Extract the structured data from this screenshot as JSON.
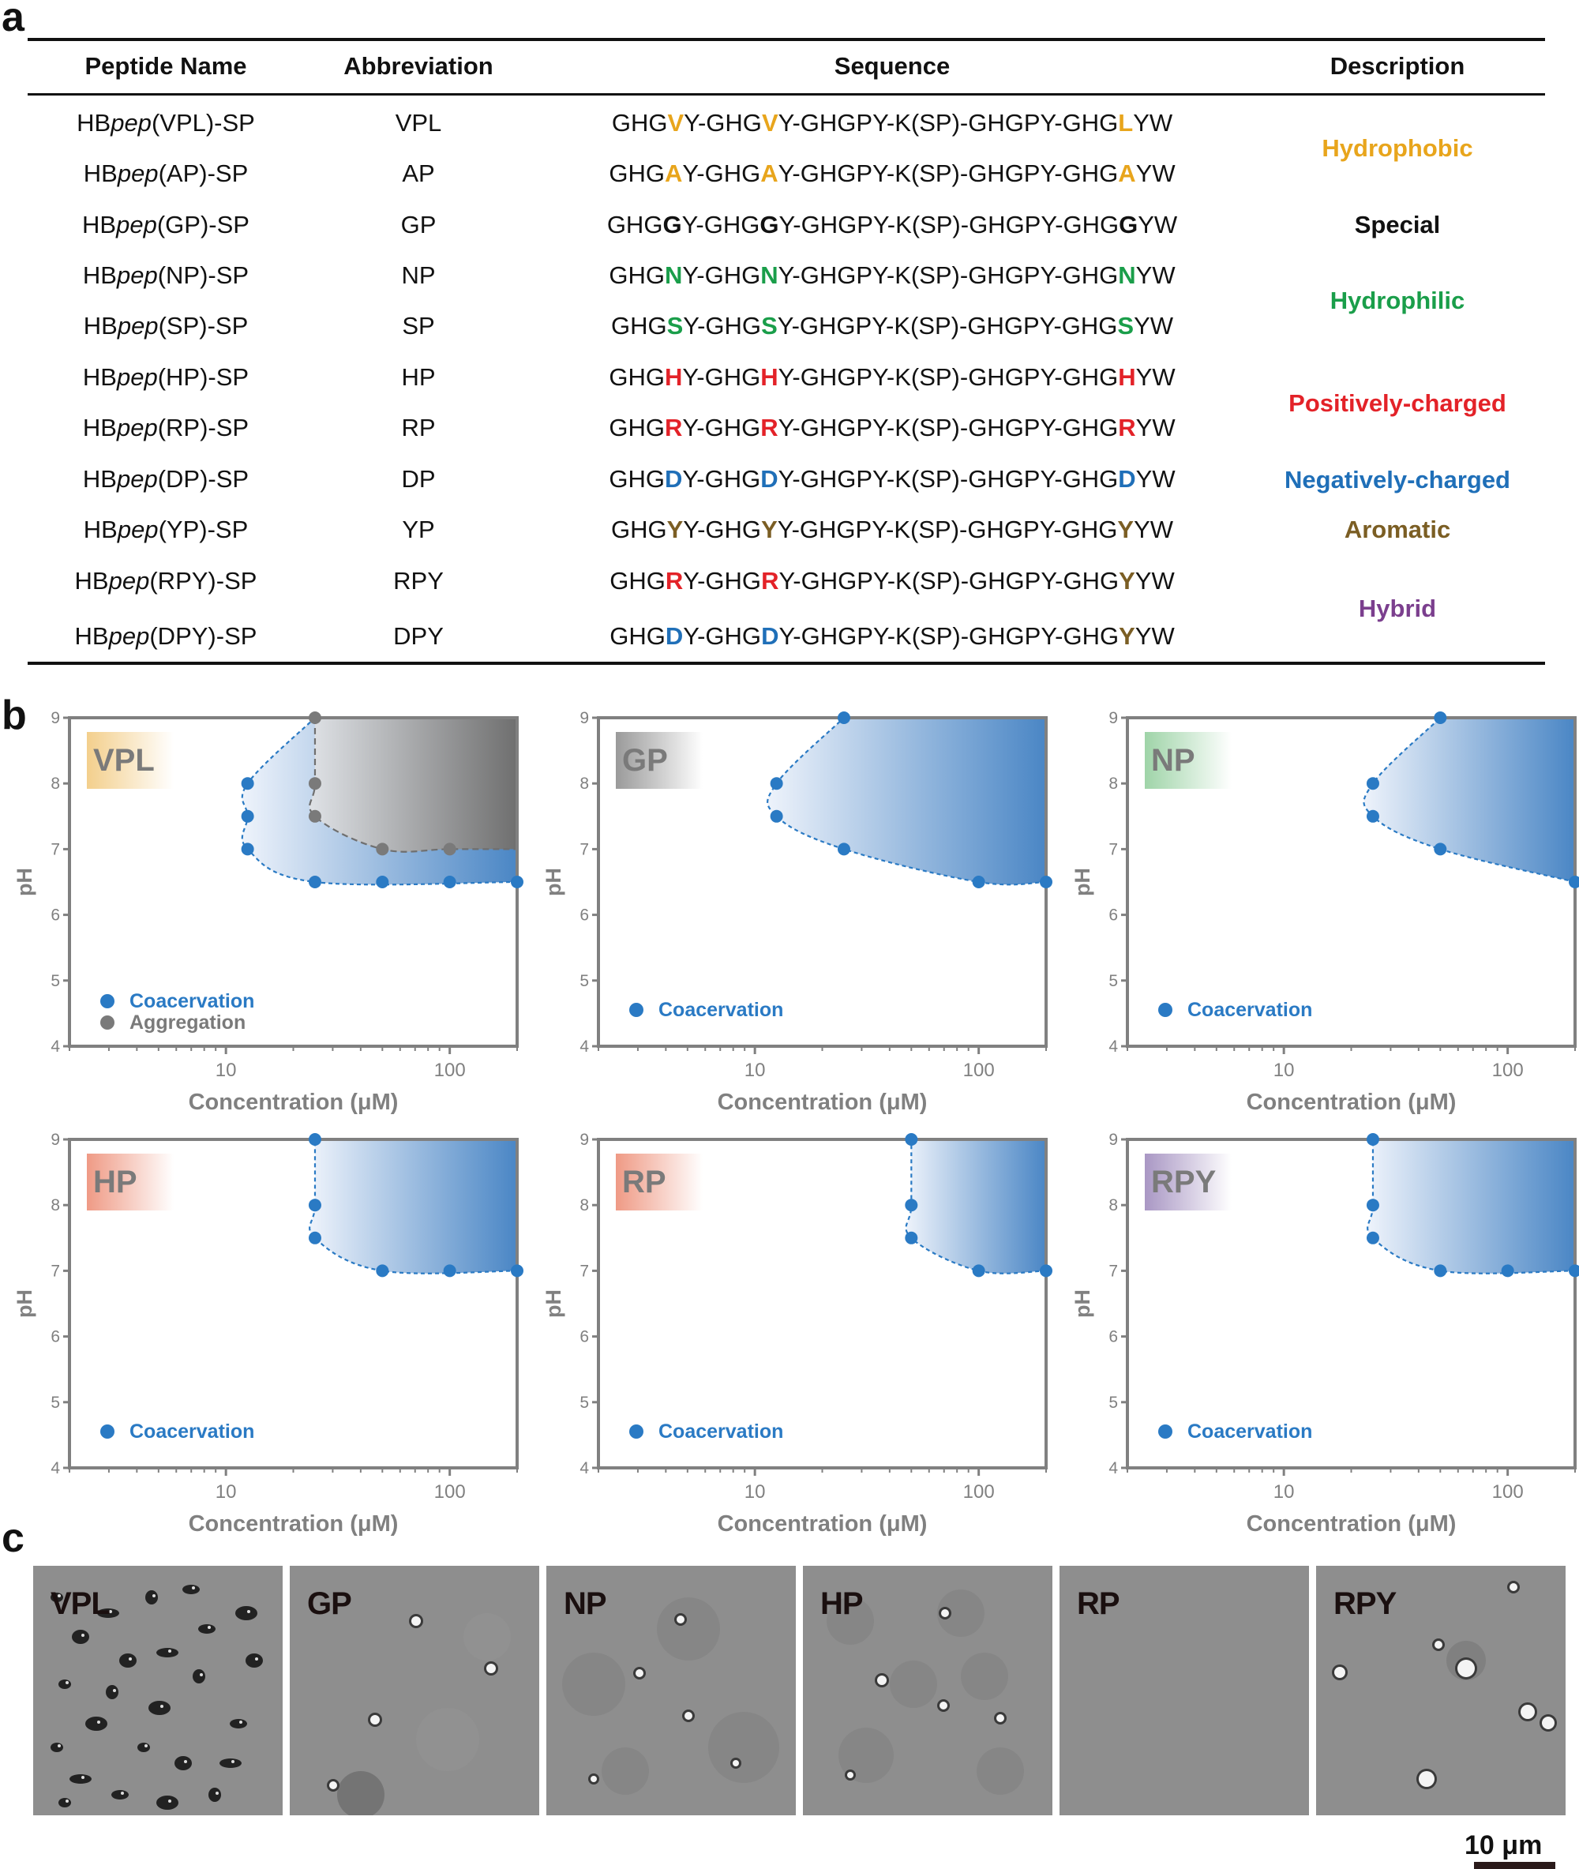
{
  "panel_labels": {
    "a": "a",
    "b": "b",
    "c": "c"
  },
  "table": {
    "headers": [
      "Peptide Name",
      "Abbreviation",
      "Sequence",
      "Description"
    ],
    "rows": [
      {
        "name_prefix": "HB",
        "name_italic": "pep",
        "name_suffix": "(VPL)-SP",
        "abbr": "VPL",
        "seq": [
          [
            "GHG",
            ""
          ],
          [
            "V",
            "#e8a51c"
          ],
          [
            "Y-GHG",
            ""
          ],
          [
            "V",
            "#e8a51c"
          ],
          [
            "Y-GHGPY-K(SP)-GHGPY-GHG",
            ""
          ],
          [
            "L",
            "#e8a51c"
          ],
          [
            "YW",
            ""
          ]
        ]
      },
      {
        "name_prefix": "HB",
        "name_italic": "pep",
        "name_suffix": "(AP)-SP",
        "abbr": "AP",
        "seq": [
          [
            "GHG",
            ""
          ],
          [
            "A",
            "#e8a51c"
          ],
          [
            "Y-GHG",
            ""
          ],
          [
            "A",
            "#e8a51c"
          ],
          [
            "Y-GHGPY-K(SP)-GHGPY-GHG",
            ""
          ],
          [
            "A",
            "#e8a51c"
          ],
          [
            "YW",
            ""
          ]
        ]
      },
      {
        "name_prefix": "HB",
        "name_italic": "pep",
        "name_suffix": "(GP)-SP",
        "abbr": "GP",
        "seq": [
          [
            "GHG",
            ""
          ],
          [
            "G",
            "#111111"
          ],
          [
            "Y-GHG",
            ""
          ],
          [
            "G",
            "#111111"
          ],
          [
            "Y-GHGPY-K(SP)-GHGPY-GHG",
            ""
          ],
          [
            "G",
            "#111111"
          ],
          [
            "YW",
            ""
          ]
        ]
      },
      {
        "name_prefix": "HB",
        "name_italic": "pep",
        "name_suffix": "(NP)-SP",
        "abbr": "NP",
        "seq": [
          [
            "GHG",
            ""
          ],
          [
            "N",
            "#1a9e4a"
          ],
          [
            "Y-GHG",
            ""
          ],
          [
            "N",
            "#1a9e4a"
          ],
          [
            "Y-GHGPY-K(SP)-GHGPY-GHG",
            ""
          ],
          [
            "N",
            "#1a9e4a"
          ],
          [
            "YW",
            ""
          ]
        ]
      },
      {
        "name_prefix": "HB",
        "name_italic": "pep",
        "name_suffix": "(SP)-SP",
        "abbr": "SP",
        "seq": [
          [
            "GHG",
            ""
          ],
          [
            "S",
            "#1a9e4a"
          ],
          [
            "Y-GHG",
            ""
          ],
          [
            "S",
            "#1a9e4a"
          ],
          [
            "Y-GHGPY-K(SP)-GHGPY-GHG",
            ""
          ],
          [
            "S",
            "#1a9e4a"
          ],
          [
            "YW",
            ""
          ]
        ]
      },
      {
        "name_prefix": "HB",
        "name_italic": "pep",
        "name_suffix": "(HP)-SP",
        "abbr": "HP",
        "seq": [
          [
            "GHG",
            ""
          ],
          [
            "H",
            "#e32228"
          ],
          [
            "Y-GHG",
            ""
          ],
          [
            "H",
            "#e32228"
          ],
          [
            "Y-GHGPY-K(SP)-GHGPY-GHG",
            ""
          ],
          [
            "H",
            "#e32228"
          ],
          [
            "YW",
            ""
          ]
        ]
      },
      {
        "name_prefix": "HB",
        "name_italic": "pep",
        "name_suffix": "(RP)-SP",
        "abbr": "RP",
        "seq": [
          [
            "GHG",
            ""
          ],
          [
            "R",
            "#e32228"
          ],
          [
            "Y-GHG",
            ""
          ],
          [
            "R",
            "#e32228"
          ],
          [
            "Y-GHGPY-K(SP)-GHGPY-GHG",
            ""
          ],
          [
            "R",
            "#e32228"
          ],
          [
            "YW",
            ""
          ]
        ]
      },
      {
        "name_prefix": "HB",
        "name_italic": "pep",
        "name_suffix": "(DP)-SP",
        "abbr": "DP",
        "seq": [
          [
            "GHG",
            ""
          ],
          [
            "D",
            "#1f6fb8"
          ],
          [
            "Y-GHG",
            ""
          ],
          [
            "D",
            "#1f6fb8"
          ],
          [
            "Y-GHGPY-K(SP)-GHGPY-GHG",
            ""
          ],
          [
            "D",
            "#1f6fb8"
          ],
          [
            "YW",
            ""
          ]
        ]
      },
      {
        "name_prefix": "HB",
        "name_italic": "pep",
        "name_suffix": "(YP)-SP",
        "abbr": "YP",
        "seq": [
          [
            "GHG",
            ""
          ],
          [
            "Y",
            "#7b5e24"
          ],
          [
            "Y-GHG",
            ""
          ],
          [
            "Y",
            "#7b5e24"
          ],
          [
            "Y-GHGPY-K(SP)-GHGPY-GHG",
            ""
          ],
          [
            "Y",
            "#7b5e24"
          ],
          [
            "YW",
            ""
          ]
        ]
      },
      {
        "name_prefix": "HB",
        "name_italic": "pep",
        "name_suffix": "(RPY)-SP",
        "abbr": "RPY",
        "seq": [
          [
            "GHG",
            ""
          ],
          [
            "R",
            "#e32228"
          ],
          [
            "Y-GHG",
            ""
          ],
          [
            "R",
            "#e32228"
          ],
          [
            "Y-GHGPY-K(SP)-GHGPY-GHG",
            ""
          ],
          [
            "Y",
            "#7b5e24"
          ],
          [
            "YW",
            ""
          ]
        ]
      },
      {
        "name_prefix": "HB",
        "name_italic": "pep",
        "name_suffix": "(DPY)-SP",
        "abbr": "DPY",
        "seq": [
          [
            "GHG",
            ""
          ],
          [
            "D",
            "#1f6fb8"
          ],
          [
            "Y-GHG",
            ""
          ],
          [
            "D",
            "#1f6fb8"
          ],
          [
            "Y-GHGPY-K(SP)-GHGPY-GHG",
            ""
          ],
          [
            "Y",
            "#7b5e24"
          ],
          [
            "YW",
            ""
          ]
        ]
      }
    ],
    "descriptions": [
      {
        "text": "Hydrophobic",
        "color": "#e8a51c"
      },
      {
        "text": "Special",
        "color": "#111111"
      },
      {
        "text": "Hydrophilic",
        "color": "#1a9e4a"
      },
      {
        "text": "Positively-charged",
        "color": "#e32228"
      },
      {
        "text": "Negatively-charged",
        "color": "#1f6fb8"
      },
      {
        "text": "Aromatic",
        "color": "#7b5e24"
      },
      {
        "text": "Hybrid",
        "color": "#7b3f8e"
      }
    ]
  },
  "chart_data": [
    {
      "type": "scatter",
      "title": "VPL",
      "title_color": "#e8a51c",
      "xlabel": "Concentration (μM)",
      "ylabel": "pH",
      "xscale": "log",
      "xlim": [
        2,
        200
      ],
      "ylim": [
        4,
        9
      ],
      "xticks": [
        10,
        100
      ],
      "yticks": [
        4,
        5,
        6,
        7,
        8,
        9
      ],
      "series": [
        {
          "name": "Coacervation",
          "color": "#2a7ac4",
          "points": [
            [
              12.5,
              8
            ],
            [
              12.5,
              7.5
            ],
            [
              12.5,
              7
            ],
            [
              25,
              6.5
            ],
            [
              50,
              6.5
            ],
            [
              100,
              6.5
            ],
            [
              200,
              6.5
            ]
          ],
          "boundary": [
            [
              200,
              6.5
            ],
            [
              25,
              6.5
            ],
            [
              12.5,
              7
            ],
            [
              12.5,
              7.5
            ],
            [
              12.5,
              8
            ],
            [
              25,
              9
            ]
          ]
        },
        {
          "name": "Aggregation",
          "color": "#7a7a7a",
          "points": [
            [
              25,
              9
            ],
            [
              25,
              8
            ],
            [
              25,
              7.5
            ],
            [
              50,
              7
            ],
            [
              100,
              7
            ]
          ],
          "boundary": [
            [
              25,
              9
            ],
            [
              25,
              8
            ],
            [
              25,
              7.5
            ],
            [
              50,
              7
            ],
            [
              100,
              7
            ],
            [
              200,
              7
            ]
          ]
        }
      ]
    },
    {
      "type": "scatter",
      "title": "GP",
      "title_color": "#555555",
      "xlabel": "Concentration (μM)",
      "ylabel": "pH",
      "xscale": "log",
      "xlim": [
        2,
        200
      ],
      "ylim": [
        4,
        9
      ],
      "xticks": [
        10,
        100
      ],
      "yticks": [
        4,
        5,
        6,
        7,
        8,
        9
      ],
      "series": [
        {
          "name": "Coacervation",
          "color": "#2a7ac4",
          "points": [
            [
              25,
              9
            ],
            [
              12.5,
              8
            ],
            [
              12.5,
              7.5
            ],
            [
              25,
              7
            ],
            [
              100,
              6.5
            ],
            [
              200,
              6.5
            ]
          ],
          "boundary": [
            [
              200,
              6.5
            ],
            [
              100,
              6.5
            ],
            [
              25,
              7
            ],
            [
              12.5,
              7.5
            ],
            [
              12.5,
              8
            ],
            [
              25,
              9
            ]
          ]
        }
      ]
    },
    {
      "type": "scatter",
      "title": "NP",
      "title_color": "#1a9e4a",
      "xlabel": "Concentration (μM)",
      "ylabel": "pH",
      "xscale": "log",
      "xlim": [
        2,
        200
      ],
      "ylim": [
        4,
        9
      ],
      "xticks": [
        10,
        100
      ],
      "yticks": [
        4,
        5,
        6,
        7,
        8,
        9
      ],
      "series": [
        {
          "name": "Coacervation",
          "color": "#2a7ac4",
          "points": [
            [
              50,
              9
            ],
            [
              25,
              8
            ],
            [
              25,
              7.5
            ],
            [
              50,
              7
            ],
            [
              200,
              6.5
            ]
          ],
          "boundary": [
            [
              200,
              6.5
            ],
            [
              50,
              7
            ],
            [
              25,
              7.5
            ],
            [
              25,
              8
            ],
            [
              50,
              9
            ]
          ]
        }
      ]
    },
    {
      "type": "scatter",
      "title": "HP",
      "title_color": "#e32228",
      "xlabel": "Concentration (μM)",
      "ylabel": "pH",
      "xscale": "log",
      "xlim": [
        2,
        200
      ],
      "ylim": [
        4,
        9
      ],
      "xticks": [
        10,
        100
      ],
      "yticks": [
        4,
        5,
        6,
        7,
        8,
        9
      ],
      "series": [
        {
          "name": "Coacervation",
          "color": "#2a7ac4",
          "points": [
            [
              25,
              9
            ],
            [
              25,
              8
            ],
            [
              25,
              7.5
            ],
            [
              50,
              7
            ],
            [
              100,
              7
            ],
            [
              200,
              7
            ]
          ],
          "boundary": [
            [
              200,
              7
            ],
            [
              50,
              7
            ],
            [
              25,
              7.5
            ],
            [
              25,
              8
            ],
            [
              25,
              9
            ]
          ]
        }
      ]
    },
    {
      "type": "scatter",
      "title": "RP",
      "title_color": "#e32228",
      "xlabel": "Concentration (μM)",
      "ylabel": "pH",
      "xscale": "log",
      "xlim": [
        2,
        200
      ],
      "ylim": [
        4,
        9
      ],
      "xticks": [
        10,
        100
      ],
      "yticks": [
        4,
        5,
        6,
        7,
        8,
        9
      ],
      "series": [
        {
          "name": "Coacervation",
          "color": "#2a7ac4",
          "points": [
            [
              50,
              9
            ],
            [
              50,
              8
            ],
            [
              50,
              7.5
            ],
            [
              100,
              7
            ],
            [
              200,
              7
            ]
          ],
          "boundary": [
            [
              200,
              7
            ],
            [
              100,
              7
            ],
            [
              50,
              7.5
            ],
            [
              50,
              8
            ],
            [
              50,
              9
            ]
          ]
        }
      ]
    },
    {
      "type": "scatter",
      "title": "RPY",
      "title_color": "#7b3f8e",
      "xlabel": "Concentration (μM)",
      "ylabel": "pH",
      "xscale": "log",
      "xlim": [
        2,
        200
      ],
      "ylim": [
        4,
        9
      ],
      "xticks": [
        10,
        100
      ],
      "yticks": [
        4,
        5,
        6,
        7,
        8,
        9
      ],
      "series": [
        {
          "name": "Coacervation",
          "color": "#2a7ac4",
          "points": [
            [
              25,
              9
            ],
            [
              25,
              8
            ],
            [
              25,
              7.5
            ],
            [
              50,
              7
            ],
            [
              100,
              7
            ],
            [
              200,
              7
            ]
          ],
          "boundary": [
            [
              200,
              7
            ],
            [
              50,
              7
            ],
            [
              25,
              7.5
            ],
            [
              25,
              8
            ],
            [
              25,
              9
            ]
          ]
        }
      ]
    }
  ],
  "micrographs": {
    "labels": [
      "VPL",
      "GP",
      "NP",
      "HP",
      "RP",
      "RPY"
    ],
    "scale_bar": "10 μm"
  }
}
